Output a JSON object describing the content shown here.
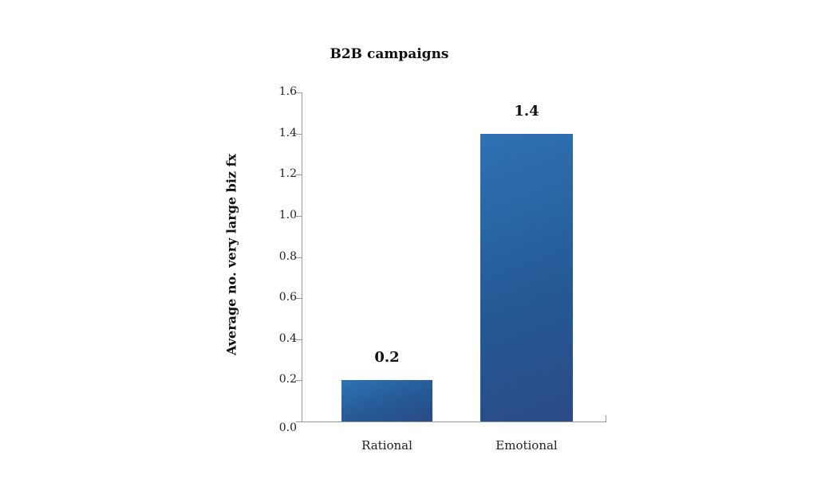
{
  "chart_data": {
    "type": "bar",
    "title": "B2B campaigns",
    "xlabel": "",
    "ylabel": "Average no. very large biz fx",
    "categories": [
      "Rational",
      "Emotional"
    ],
    "values": [
      0.2,
      1.4
    ],
    "value_labels": [
      "0.2",
      "1.4"
    ],
    "ylim": [
      0.0,
      1.6
    ],
    "yticks": [
      "0.0",
      "0.2",
      "0.4",
      "0.6",
      "0.8",
      "1.0",
      "1.2",
      "1.4",
      "1.6"
    ],
    "grid": false,
    "legend": null,
    "bar_color": "#2a62a3"
  }
}
